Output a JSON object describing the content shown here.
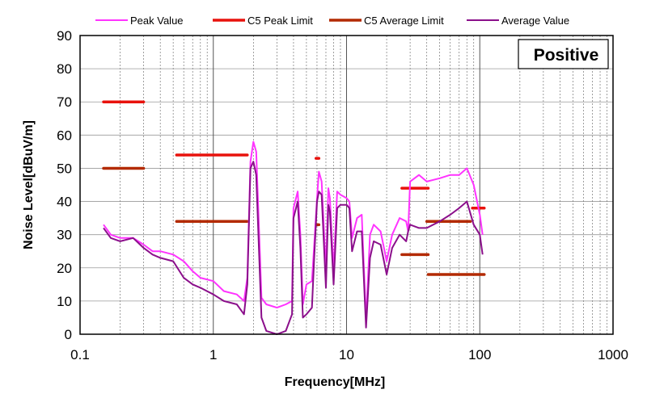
{
  "chart_data": {
    "type": "line",
    "title": "",
    "annotation": "Positive",
    "xlabel": "Frequency[MHz]",
    "ylabel": "Noise Level[dBuV/m]",
    "xscale": "log",
    "xlim": [
      0.1,
      1000
    ],
    "ylim": [
      0,
      90
    ],
    "x_ticks": [
      "0.1",
      "1",
      "10",
      "100",
      "1000"
    ],
    "y_ticks": [
      "0",
      "10",
      "20",
      "30",
      "40",
      "50",
      "60",
      "70",
      "80",
      "90"
    ],
    "grid": true,
    "legend_position": "top",
    "colors": {
      "peak_value": "#ff33ff",
      "c5_peak_limit": "#e8120c",
      "c5_average_limit": "#b32a00",
      "average_value": "#8b0f8b"
    },
    "series": [
      {
        "name": "Peak Value",
        "kind": "measurement",
        "x": [
          0.15,
          0.17,
          0.2,
          0.25,
          0.3,
          0.35,
          0.4,
          0.5,
          0.6,
          0.7,
          0.8,
          1.0,
          1.2,
          1.5,
          1.7,
          1.8,
          1.9,
          2.0,
          2.1,
          2.3,
          2.5,
          3.0,
          3.5,
          3.9,
          4.0,
          4.3,
          4.5,
          4.7,
          5.0,
          5.5,
          5.7,
          6.0,
          6.2,
          6.5,
          7.0,
          7.3,
          7.5,
          8.0,
          8.5,
          9.0,
          10.0,
          10.5,
          11.0,
          12.0,
          13.0,
          14.0,
          15.0,
          16.0,
          18.0,
          20.0,
          22.0,
          25.0,
          28.0,
          29.0,
          30.0,
          35.0,
          40.0,
          50.0,
          60.0,
          70.0,
          80.0,
          90.0,
          100.0,
          105.0
        ],
        "y": [
          33,
          30,
          29,
          29,
          27,
          25,
          25,
          24,
          22,
          19,
          17,
          16,
          13,
          12,
          10,
          17,
          52,
          58,
          55,
          11,
          9,
          8,
          9,
          10,
          38,
          43,
          30,
          9,
          15,
          16,
          26,
          41,
          49,
          46,
          19,
          44,
          41,
          19,
          43,
          42,
          41,
          40,
          29,
          35,
          36,
          4,
          30,
          33,
          31,
          22,
          30,
          35,
          34,
          31,
          46,
          48,
          46,
          47,
          48,
          48,
          50,
          45,
          36,
          30
        ]
      },
      {
        "name": "C5 Peak Limit",
        "kind": "limit",
        "segments": [
          {
            "x": [
              0.15,
              0.3
            ],
            "y": 70
          },
          {
            "x": [
              0.53,
              1.8
            ],
            "y": 54
          },
          {
            "x": [
              5.9,
              6.2
            ],
            "y": 53
          },
          {
            "x": [
              26,
              41
            ],
            "y": 44
          },
          {
            "x": [
              88,
              108
            ],
            "y": 38
          }
        ]
      },
      {
        "name": "C5 Average Limit",
        "kind": "limit",
        "segments": [
          {
            "x": [
              0.15,
              0.3
            ],
            "y": 50
          },
          {
            "x": [
              0.53,
              1.8
            ],
            "y": 34
          },
          {
            "x": [
              5.9,
              6.2
            ],
            "y": 33
          },
          {
            "x": [
              26,
              41
            ],
            "y": 24
          },
          {
            "x": [
              41,
              108
            ],
            "y": 18
          },
          {
            "x": [
              40,
              85
            ],
            "y": 34
          }
        ]
      },
      {
        "name": "Average Value",
        "kind": "measurement",
        "x": [
          0.15,
          0.17,
          0.2,
          0.25,
          0.3,
          0.35,
          0.4,
          0.5,
          0.6,
          0.7,
          0.8,
          1.0,
          1.2,
          1.5,
          1.7,
          1.8,
          1.9,
          2.0,
          2.1,
          2.3,
          2.5,
          3.0,
          3.5,
          3.9,
          4.0,
          4.3,
          4.5,
          4.7,
          5.0,
          5.5,
          5.7,
          6.0,
          6.2,
          6.5,
          7.0,
          7.3,
          7.5,
          8.0,
          8.5,
          9.0,
          10.0,
          10.5,
          11.0,
          12.0,
          13.0,
          14.0,
          15.0,
          16.0,
          18.0,
          20.0,
          22.0,
          25.0,
          28.0,
          29.0,
          30.0,
          35.0,
          40.0,
          50.0,
          60.0,
          70.0,
          80.0,
          90.0,
          100.0,
          105.0
        ],
        "y": [
          32,
          29,
          28,
          29,
          26,
          24,
          23,
          22,
          17,
          15,
          14,
          12,
          10,
          9,
          6,
          15,
          50,
          52,
          48,
          5,
          1,
          0,
          1,
          6,
          35,
          40,
          26,
          5,
          6,
          8,
          22,
          40,
          43,
          42,
          14,
          39,
          37,
          15,
          38,
          39,
          39,
          38,
          25,
          31,
          31,
          2,
          23,
          28,
          27,
          18,
          26,
          30,
          28,
          31,
          33,
          32,
          32,
          34,
          36,
          38,
          40,
          33,
          30,
          24
        ]
      }
    ]
  }
}
